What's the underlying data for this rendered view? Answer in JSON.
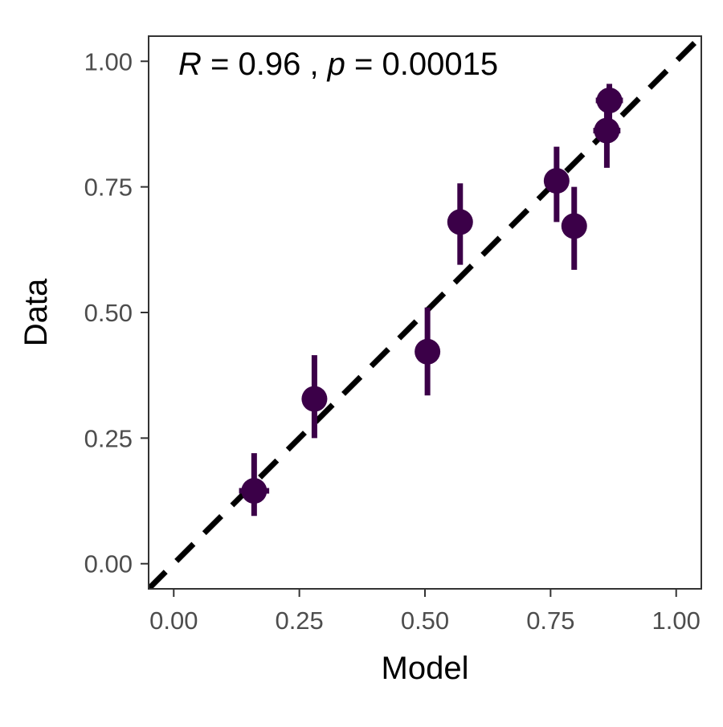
{
  "chart_data": {
    "type": "scatter",
    "xlabel": "Model",
    "ylabel": "Data",
    "xlim": [
      -0.05,
      1.05
    ],
    "ylim": [
      -0.05,
      1.05
    ],
    "x_ticks": [
      0.0,
      0.25,
      0.5,
      0.75,
      1.0
    ],
    "y_ticks": [
      0.0,
      0.25,
      0.5,
      0.75,
      1.0
    ],
    "x_tick_labels": [
      "0.00",
      "0.25",
      "0.50",
      "0.75",
      "1.00"
    ],
    "y_tick_labels": [
      "0.00",
      "0.25",
      "0.50",
      "0.75",
      "1.00"
    ],
    "grid": false,
    "point_color": "#3b0048",
    "reference_line": {
      "style": "dashed",
      "color": "#000000",
      "from": [
        -0.05,
        -0.05
      ],
      "to": [
        1.05,
        1.05
      ]
    },
    "annotation": {
      "r_symbol": "R",
      "r_text": " = 0.96 , ",
      "p_symbol": "p",
      "p_text": " = 0.00015"
    },
    "points": [
      {
        "x": 0.16,
        "y": 0.145,
        "x_err": 0.03,
        "y_err_low": 0.095,
        "y_err_high": 0.22
      },
      {
        "x": 0.28,
        "y": 0.328,
        "x_err": 0.0,
        "y_err_low": 0.25,
        "y_err_high": 0.415
      },
      {
        "x": 0.505,
        "y": 0.422,
        "x_err": 0.0,
        "y_err_low": 0.335,
        "y_err_high": 0.51
      },
      {
        "x": 0.57,
        "y": 0.68,
        "x_err": 0.0,
        "y_err_low": 0.595,
        "y_err_high": 0.757
      },
      {
        "x": 0.762,
        "y": 0.762,
        "x_err": 0.0,
        "y_err_low": 0.68,
        "y_err_high": 0.83
      },
      {
        "x": 0.797,
        "y": 0.672,
        "x_err": 0.0,
        "y_err_low": 0.585,
        "y_err_high": 0.75
      },
      {
        "x": 0.862,
        "y": 0.862,
        "x_err": 0.027,
        "y_err_low": 0.788,
        "y_err_high": 0.93
      },
      {
        "x": 0.867,
        "y": 0.922,
        "x_err": 0.027,
        "y_err_low": 0.885,
        "y_err_high": 0.955
      }
    ]
  }
}
